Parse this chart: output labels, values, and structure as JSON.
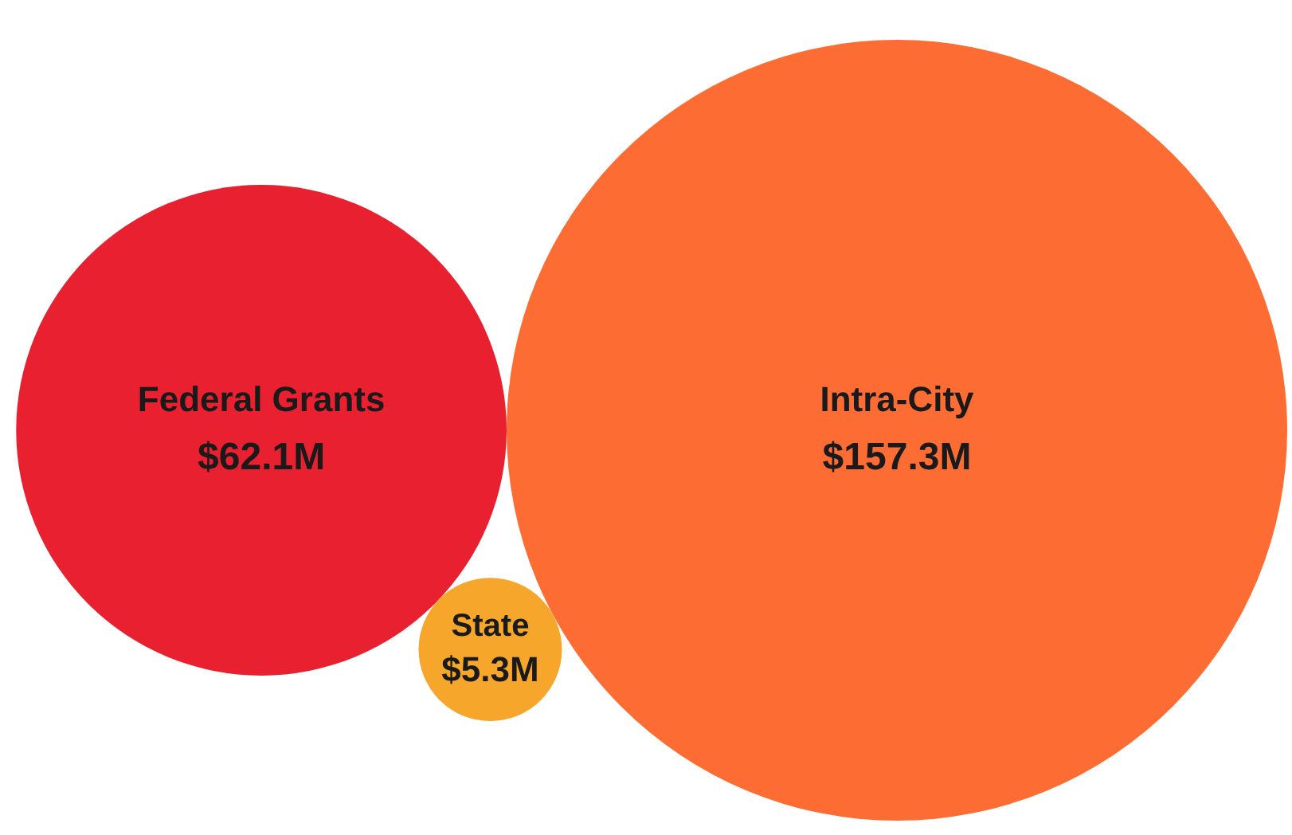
{
  "chart_data": {
    "type": "other",
    "categories": [
      "Federal Grants",
      "Intra-City",
      "State"
    ],
    "values": [
      62.1,
      157.3,
      5.3
    ],
    "value_labels": [
      "$62.1M",
      "$157.3M",
      "$5.3M"
    ],
    "colors": [
      "#e8202f",
      "#fd6c32",
      "#f6a62b"
    ]
  }
}
